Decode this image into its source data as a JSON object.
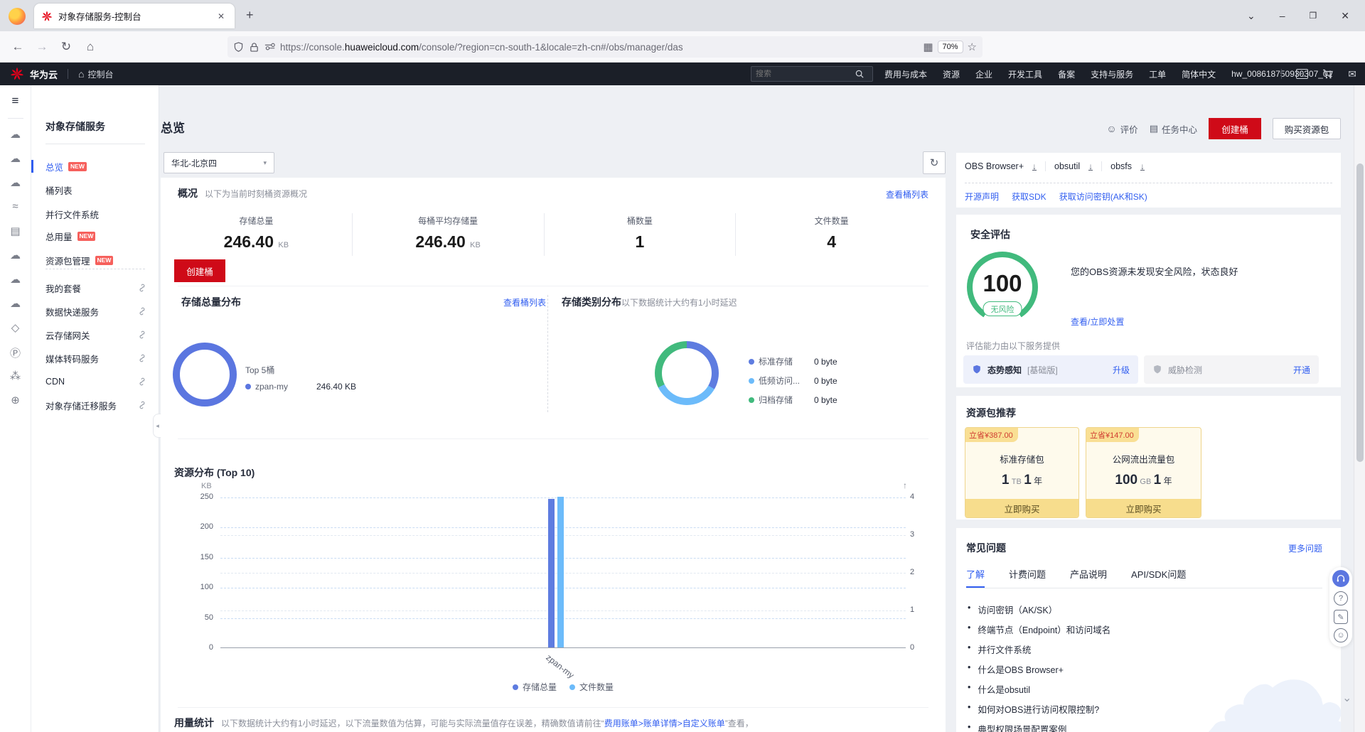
{
  "colors": {
    "accent_blue": "#315EF0",
    "huawei_red": "#CF0A18",
    "badge_red": "#F6605C",
    "bar_blue": "#5E7CE0",
    "bar_light_blue": "#6CBBFA",
    "green": "#41BA7D",
    "donut_blue": "#5B76E0",
    "yellow_card_bg": "#FEFAEC",
    "yellow_border": "#EFD58C",
    "yellow_buy_bar": "#F7DD8D",
    "tag_text_red": "#D03C32",
    "dark_nav_bg": "#1B1F28"
  },
  "browser": {
    "tab_title": "对象存储服务-控制台",
    "url_scheme": "https://console.",
    "url_host": "huaweicloud.com",
    "url_path": "/console/?region=cn-south-1&locale=zh-cn#/obs/manager/das",
    "zoom_badge": "70%",
    "notif_count": "1"
  },
  "icons": {
    "close": "✕",
    "plus": "+",
    "tabs_chevron": "⌄",
    "minimize": "–",
    "restore": "❐",
    "back": "←",
    "forward": "→",
    "reload": "↻",
    "home": "⌂",
    "star": "☆",
    "menu": "≡",
    "download": "↓",
    "undo": "↶",
    "crop": "⌗",
    "js": "JS",
    "mail": "✉",
    "smiley": "☺",
    "clipboard": "▤",
    "question": "?",
    "feedback": "✎",
    "chevron_down": "⌄",
    "collapse_left": "◂",
    "caret_down": "▾",
    "up_arrow": "↑",
    "translate": "文A",
    "terminal": ">_",
    "qr": "▦",
    "bullet": "•"
  },
  "hw_nav": {
    "brand": "华为云",
    "console": "控制台",
    "search_placeholder": "搜索",
    "menu": [
      "费用与成本",
      "资源",
      "企业",
      "开发工具",
      "备案",
      "支持与服务",
      "工单",
      "简体中文"
    ],
    "username": "hw_008618750930307_01"
  },
  "sidebar": {
    "title": "对象存储服务",
    "items": [
      {
        "label": "总览",
        "badge": "NEW"
      },
      {
        "label": "桶列表"
      },
      {
        "label": "并行文件系统"
      },
      {
        "label": "总用量",
        "badge": "NEW"
      },
      {
        "label": "资源包管理",
        "badge": "NEW"
      },
      {
        "label": "我的套餐"
      },
      {
        "label": "数据快递服务"
      },
      {
        "label": "云存储网关"
      },
      {
        "label": "媒体转码服务"
      },
      {
        "label": "CDN"
      },
      {
        "label": "对象存储迁移服务"
      }
    ]
  },
  "page": {
    "title": "总览",
    "region": "华北-北京四"
  },
  "header_actions": {
    "rate": "评价",
    "tasks": "任务中心",
    "create": "创建桶",
    "buy": "购买资源包"
  },
  "overview": {
    "heading": "概况",
    "subtitle": "以下为当前时刻桶资源概况",
    "link": "查看桶列表",
    "create_button": "创建桶",
    "stats": [
      {
        "label": "存储总量",
        "value": "246.40",
        "unit": "KB"
      },
      {
        "label": "每桶平均存储量",
        "value": "246.40",
        "unit": "KB"
      },
      {
        "label": "桶数量",
        "value": "1",
        "unit": ""
      },
      {
        "label": "文件数量",
        "value": "4",
        "unit": ""
      }
    ]
  },
  "storage_dist": {
    "heading": "存储总量分布",
    "link": "查看桶列表",
    "top_label": "Top 5桶",
    "bucket_name": "zpan-my",
    "bucket_value": "246.40 KB"
  },
  "class_dist": {
    "heading": "存储类别分布",
    "note": "以下数据统计大约有1小时延迟",
    "legend": [
      {
        "name": "标准存储",
        "value": "0 byte",
        "color": "#5E7CE0"
      },
      {
        "name": "低频访问...",
        "value": "0 byte",
        "color": "#6CBBFA"
      },
      {
        "name": "归档存储",
        "value": "0 byte",
        "color": "#41BA7D"
      }
    ]
  },
  "chart_data": {
    "type": "bar",
    "title": "资源分布 (Top 10)",
    "unit_left": "KB",
    "categories": [
      "zpan-my"
    ],
    "series": [
      {
        "name": "存储总量",
        "axis": "left",
        "values": [
          246.4
        ],
        "color": "#5E7CE0"
      },
      {
        "name": "文件数量",
        "axis": "right",
        "values": [
          4
        ],
        "color": "#6CBBFA"
      }
    ],
    "left_axis": {
      "ticks": [
        0,
        50,
        100,
        150,
        200,
        250
      ],
      "max": 250
    },
    "right_axis": {
      "ticks": [
        0,
        1,
        2,
        3,
        4
      ],
      "max": 4
    },
    "grid": "dashed-horizontal",
    "legend_position": "bottom"
  },
  "usage": {
    "heading": "用量统计",
    "note_prefix": "以下数据统计大约有1小时延迟，以下流量数值为估算，可能与实际流量值存在误差，精确数值请前往“",
    "note_link": "费用账单>账单详情>自定义账单",
    "note_suffix": "”查看，"
  },
  "downloads": {
    "tools": [
      "OBS Browser+",
      "obsutil",
      "obsfs"
    ],
    "links": [
      "开源声明",
      "获取SDK",
      "获取访问密钥(AK和SK)"
    ]
  },
  "security": {
    "heading": "安全评估",
    "score": "100",
    "badge": "无风险",
    "desc": "您的OBS资源未发现安全风险，状态良好",
    "action": "查看/立即处置",
    "providers_label": "评估能力由以下服务提供",
    "providers": [
      {
        "name": "态势感知",
        "tag": "[基础版]",
        "action": "升级"
      },
      {
        "name": "威胁检测",
        "tag": "",
        "action": "开通"
      }
    ]
  },
  "packages": {
    "heading": "资源包推荐",
    "cards": [
      {
        "tag": "立省¥387.00",
        "name": "标准存储包",
        "amount": "1",
        "amount_unit": "TB",
        "term": "1",
        "term_unit": "年",
        "buy": "立即购买"
      },
      {
        "tag": "立省¥147.00",
        "name": "公网流出流量包",
        "amount": "100",
        "amount_unit": "GB",
        "term": "1",
        "term_unit": "年",
        "buy": "立即购买"
      }
    ]
  },
  "faq": {
    "heading": "常见问题",
    "more": "更多问题",
    "tabs": [
      "了解",
      "计费问题",
      "产品说明",
      "API/SDK问题"
    ],
    "items": [
      "访问密钥（AK/SK）",
      "终端节点（Endpoint）和访问域名",
      "并行文件系统",
      "什么是OBS Browser+",
      "什么是obsutil",
      "如何对OBS进行访问权限控制?",
      "典型权限场景配置案例"
    ]
  }
}
